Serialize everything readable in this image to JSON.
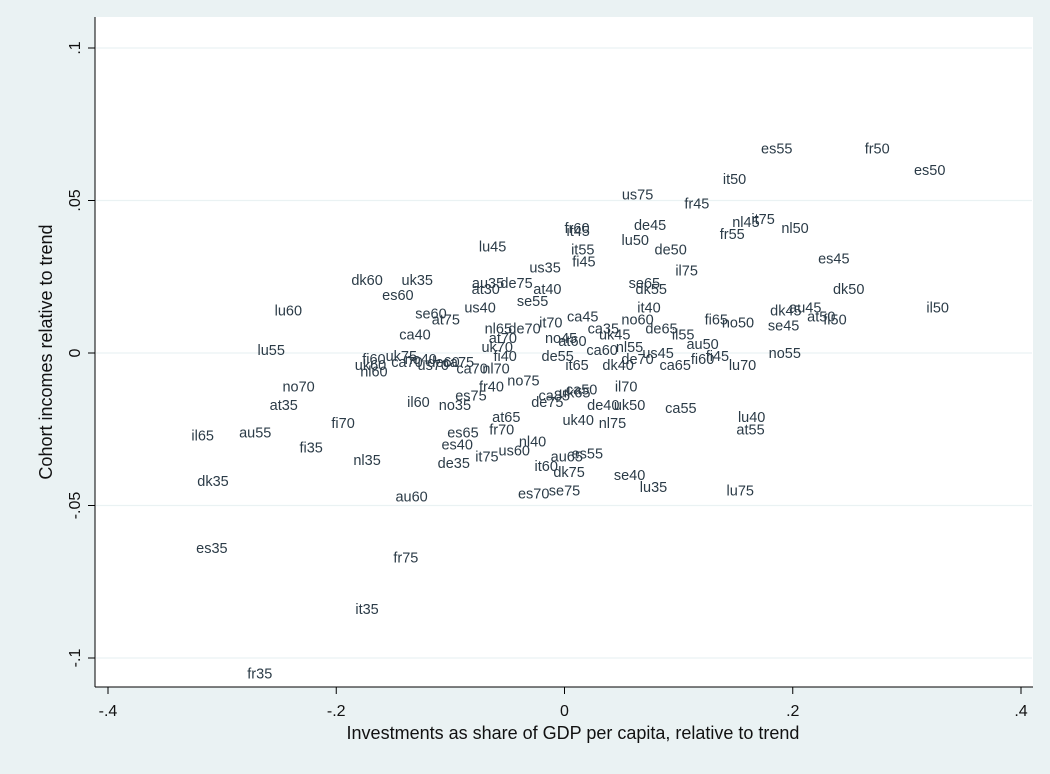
{
  "chart_data": {
    "type": "scatter",
    "xlabel": "Investments as share of GDP per capita, relative to trend",
    "ylabel": "Cohort incomes relative to trend",
    "xlim": [
      -0.4,
      0.4
    ],
    "ylim": [
      -0.1,
      0.1
    ],
    "x_ticks": [
      -0.4,
      -0.2,
      0,
      0.2,
      0.4
    ],
    "x_tick_labels": [
      "-.4",
      "-.2",
      "0",
      ".2",
      ".4"
    ],
    "y_ticks": [
      -0.1,
      -0.05,
      0,
      0.05,
      0.1
    ],
    "y_tick_labels": [
      "-.1",
      "-.05",
      "0",
      ".05",
      ".1"
    ],
    "grid": "horizontal",
    "marker": "label",
    "points": [
      {
        "label": "es55",
        "x": 0.186,
        "y": 0.067
      },
      {
        "label": "fr50",
        "x": 0.274,
        "y": 0.067
      },
      {
        "label": "es50",
        "x": 0.32,
        "y": 0.06
      },
      {
        "label": "it50",
        "x": 0.149,
        "y": 0.057
      },
      {
        "label": "us75",
        "x": 0.064,
        "y": 0.052
      },
      {
        "label": "fr45",
        "x": 0.116,
        "y": 0.049
      },
      {
        "label": "nl45",
        "x": 0.159,
        "y": 0.043
      },
      {
        "label": "it75",
        "x": 0.174,
        "y": 0.044
      },
      {
        "label": "nl50",
        "x": 0.202,
        "y": 0.041
      },
      {
        "label": "fr55",
        "x": 0.147,
        "y": 0.039
      },
      {
        "label": "fr60",
        "x": 0.011,
        "y": 0.041
      },
      {
        "label": "it45",
        "x": 0.012,
        "y": 0.04
      },
      {
        "label": "de45",
        "x": 0.075,
        "y": 0.042
      },
      {
        "label": "lu50",
        "x": 0.062,
        "y": 0.037
      },
      {
        "label": "de50",
        "x": 0.093,
        "y": 0.034
      },
      {
        "label": "lu45",
        "x": -0.063,
        "y": 0.035
      },
      {
        "label": "it55",
        "x": 0.016,
        "y": 0.034
      },
      {
        "label": "fi45",
        "x": 0.017,
        "y": 0.03
      },
      {
        "label": "il75",
        "x": 0.107,
        "y": 0.027
      },
      {
        "label": "es45",
        "x": 0.236,
        "y": 0.031
      },
      {
        "label": "us35",
        "x": -0.017,
        "y": 0.028
      },
      {
        "label": "dk60",
        "x": -0.173,
        "y": 0.024
      },
      {
        "label": "uk35",
        "x": -0.129,
        "y": 0.024
      },
      {
        "label": "au35",
        "x": -0.067,
        "y": 0.023
      },
      {
        "label": "de75",
        "x": -0.042,
        "y": 0.023
      },
      {
        "label": "at30",
        "x": -0.069,
        "y": 0.021
      },
      {
        "label": "at40",
        "x": -0.015,
        "y": 0.021
      },
      {
        "label": "se65",
        "x": 0.07,
        "y": 0.023
      },
      {
        "label": "dk55",
        "x": 0.076,
        "y": 0.021
      },
      {
        "label": "dk50",
        "x": 0.249,
        "y": 0.021
      },
      {
        "label": "es60",
        "x": -0.146,
        "y": 0.019
      },
      {
        "label": "se55",
        "x": -0.028,
        "y": 0.017
      },
      {
        "label": "lu60",
        "x": -0.242,
        "y": 0.014
      },
      {
        "label": "se60",
        "x": -0.117,
        "y": 0.013
      },
      {
        "label": "us40",
        "x": -0.074,
        "y": 0.015
      },
      {
        "label": "il50",
        "x": 0.327,
        "y": 0.015
      },
      {
        "label": "it40",
        "x": 0.074,
        "y": 0.015
      },
      {
        "label": "at75",
        "x": -0.104,
        "y": 0.011
      },
      {
        "label": "dk45",
        "x": 0.194,
        "y": 0.014
      },
      {
        "label": "au45",
        "x": 0.211,
        "y": 0.015
      },
      {
        "label": "at50",
        "x": 0.225,
        "y": 0.012
      },
      {
        "label": "fi50",
        "x": 0.237,
        "y": 0.011
      },
      {
        "label": "fi65",
        "x": 0.133,
        "y": 0.011
      },
      {
        "label": "no50",
        "x": 0.152,
        "y": 0.01
      },
      {
        "label": "se45",
        "x": 0.192,
        "y": 0.009
      },
      {
        "label": "ca45",
        "x": 0.016,
        "y": 0.012
      },
      {
        "label": "no60",
        "x": 0.064,
        "y": 0.011
      },
      {
        "label": "nl65",
        "x": -0.058,
        "y": 0.008
      },
      {
        "label": "de70",
        "x": -0.035,
        "y": 0.008
      },
      {
        "label": "it70",
        "x": -0.012,
        "y": 0.01
      },
      {
        "label": "ca35",
        "x": 0.034,
        "y": 0.008
      },
      {
        "label": "de65",
        "x": 0.085,
        "y": 0.008
      },
      {
        "label": "ca40",
        "x": -0.131,
        "y": 0.006
      },
      {
        "label": "at70",
        "x": -0.054,
        "y": 0.005
      },
      {
        "label": "no45",
        "x": -0.003,
        "y": 0.005
      },
      {
        "label": "uk45",
        "x": 0.044,
        "y": 0.006
      },
      {
        "label": "il55",
        "x": 0.104,
        "y": 0.006
      },
      {
        "label": "uk70",
        "x": -0.059,
        "y": 0.002
      },
      {
        "label": "at60",
        "x": 0.007,
        "y": 0.004
      },
      {
        "label": "au50",
        "x": 0.121,
        "y": 0.003
      },
      {
        "label": "lu55",
        "x": -0.257,
        "y": 0.001
      },
      {
        "label": "no55",
        "x": 0.193,
        "y": 0.0
      },
      {
        "label": "uk75",
        "x": -0.143,
        "y": -0.001
      },
      {
        "label": "fi40",
        "x": -0.052,
        "y": -0.001
      },
      {
        "label": "ca60",
        "x": 0.033,
        "y": 0.001
      },
      {
        "label": "nl55",
        "x": 0.057,
        "y": 0.002
      },
      {
        "label": "us45",
        "x": 0.082,
        "y": 0.0
      },
      {
        "label": "de55",
        "x": -0.006,
        "y": -0.001
      },
      {
        "label": "uk60",
        "x": -0.17,
        "y": -0.004
      },
      {
        "label": "fi60",
        "x": -0.167,
        "y": -0.002
      },
      {
        "label": "ca70",
        "x": -0.138,
        "y": -0.003
      },
      {
        "label": "no40",
        "x": -0.126,
        "y": -0.002
      },
      {
        "label": "ca75",
        "x": -0.093,
        "y": -0.003
      },
      {
        "label": "de60",
        "x": -0.106,
        "y": -0.003
      },
      {
        "label": "us70",
        "x": -0.115,
        "y": -0.004
      },
      {
        "label": "ca70",
        "x": -0.081,
        "y": -0.005
      },
      {
        "label": "nl70",
        "x": -0.06,
        "y": -0.005
      },
      {
        "label": "it65",
        "x": 0.011,
        "y": -0.004
      },
      {
        "label": "dk40",
        "x": 0.047,
        "y": -0.004
      },
      {
        "label": "de70",
        "x": 0.064,
        "y": -0.002
      },
      {
        "label": "ca65",
        "x": 0.097,
        "y": -0.004
      },
      {
        "label": "fi60",
        "x": 0.121,
        "y": -0.002
      },
      {
        "label": "fi45",
        "x": 0.134,
        "y": -0.001
      },
      {
        "label": "lu70",
        "x": 0.156,
        "y": -0.004
      },
      {
        "label": "nl60",
        "x": -0.167,
        "y": -0.006
      },
      {
        "label": "no70",
        "x": -0.233,
        "y": -0.011
      },
      {
        "label": "fr40",
        "x": -0.064,
        "y": -0.011
      },
      {
        "label": "no75",
        "x": -0.036,
        "y": -0.009
      },
      {
        "label": "il70",
        "x": 0.054,
        "y": -0.011
      },
      {
        "label": "es75",
        "x": -0.082,
        "y": -0.014
      },
      {
        "label": "ca85",
        "x": -0.009,
        "y": -0.014
      },
      {
        "label": "uk65",
        "x": 0.009,
        "y": -0.013
      },
      {
        "label": "ca50",
        "x": 0.015,
        "y": -0.012
      },
      {
        "label": "at35",
        "x": -0.246,
        "y": -0.017
      },
      {
        "label": "il60",
        "x": -0.128,
        "y": -0.016
      },
      {
        "label": "no35",
        "x": -0.096,
        "y": -0.017
      },
      {
        "label": "de75",
        "x": -0.015,
        "y": -0.016
      },
      {
        "label": "de40",
        "x": 0.034,
        "y": -0.017
      },
      {
        "label": "uk50",
        "x": 0.057,
        "y": -0.017
      },
      {
        "label": "ca55",
        "x": 0.102,
        "y": -0.018
      },
      {
        "label": "at65",
        "x": -0.051,
        "y": -0.021
      },
      {
        "label": "lu40",
        "x": 0.164,
        "y": -0.021
      },
      {
        "label": "uk40",
        "x": 0.012,
        "y": -0.022
      },
      {
        "label": "nl75",
        "x": 0.042,
        "y": -0.023
      },
      {
        "label": "fi70",
        "x": -0.194,
        "y": -0.023
      },
      {
        "label": "at55",
        "x": 0.163,
        "y": -0.025
      },
      {
        "label": "il65",
        "x": -0.317,
        "y": -0.027
      },
      {
        "label": "au55",
        "x": -0.271,
        "y": -0.026
      },
      {
        "label": "es65",
        "x": -0.089,
        "y": -0.026
      },
      {
        "label": "fr70",
        "x": -0.055,
        "y": -0.025
      },
      {
        "label": "es40",
        "x": -0.094,
        "y": -0.03
      },
      {
        "label": "nl40",
        "x": -0.028,
        "y": -0.029
      },
      {
        "label": "fi35",
        "x": -0.222,
        "y": -0.031
      },
      {
        "label": "us60",
        "x": -0.044,
        "y": -0.032
      },
      {
        "label": "it75",
        "x": -0.068,
        "y": -0.034
      },
      {
        "label": "nl35",
        "x": -0.173,
        "y": -0.035
      },
      {
        "label": "au65",
        "x": 0.002,
        "y": -0.034
      },
      {
        "label": "es55",
        "x": 0.02,
        "y": -0.033
      },
      {
        "label": "de35",
        "x": -0.097,
        "y": -0.036
      },
      {
        "label": "it60",
        "x": -0.016,
        "y": -0.037
      },
      {
        "label": "dk75",
        "x": 0.004,
        "y": -0.039
      },
      {
        "label": "se40",
        "x": 0.057,
        "y": -0.04
      },
      {
        "label": "dk35",
        "x": -0.308,
        "y": -0.042
      },
      {
        "label": "lu35",
        "x": 0.078,
        "y": -0.044
      },
      {
        "label": "lu75",
        "x": 0.154,
        "y": -0.045
      },
      {
        "label": "se75",
        "x": 0.0,
        "y": -0.045
      },
      {
        "label": "es70",
        "x": -0.027,
        "y": -0.046
      },
      {
        "label": "au60",
        "x": -0.134,
        "y": -0.047
      },
      {
        "label": "es35",
        "x": -0.309,
        "y": -0.064
      },
      {
        "label": "fr75",
        "x": -0.139,
        "y": -0.067
      },
      {
        "label": "it35",
        "x": -0.173,
        "y": -0.084
      },
      {
        "label": "fr35",
        "x": -0.267,
        "y": -0.105
      }
    ]
  }
}
